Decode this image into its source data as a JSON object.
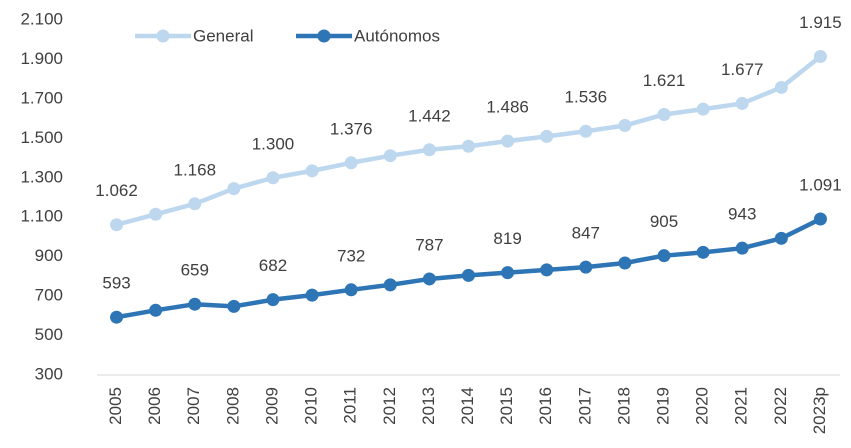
{
  "chart_data": {
    "type": "line",
    "categories": [
      "2005",
      "2006",
      "2007",
      "2008",
      "2009",
      "2010",
      "2011",
      "2012",
      "2013",
      "2014",
      "2015",
      "2016",
      "2017",
      "2018",
      "2019",
      "2020",
      "2021",
      "2022",
      "2023p"
    ],
    "series": [
      {
        "name": "General",
        "color": "#bdd7ee",
        "values": [
          1062,
          1115,
          1168,
          1245,
          1300,
          1335,
          1376,
          1412,
          1442,
          1460,
          1486,
          1510,
          1536,
          1565,
          1621,
          1648,
          1677,
          1758,
          1915
        ],
        "value_labels": [
          "1.062",
          null,
          "1.168",
          null,
          "1.300",
          null,
          "1.376",
          null,
          "1.442",
          null,
          "1.486",
          null,
          "1.536",
          null,
          "1.621",
          null,
          "1.677",
          null,
          "1.915"
        ]
      },
      {
        "name": "Autónomos",
        "color": "#2e75b6",
        "values": [
          593,
          628,
          659,
          648,
          682,
          705,
          732,
          757,
          787,
          805,
          819,
          833,
          847,
          868,
          905,
          922,
          943,
          993,
          1091
        ],
        "value_labels": [
          "593",
          null,
          "659",
          null,
          "682",
          null,
          "732",
          null,
          "787",
          null,
          "819",
          null,
          "847",
          null,
          "905",
          null,
          "943",
          null,
          "1.091"
        ]
      }
    ],
    "ylim": [
      300,
      2100
    ],
    "yticks": [
      300,
      500,
      700,
      900,
      {
        "value": 1100,
        "label": "1.100"
      },
      {
        "value": 1300,
        "label": "1.300"
      },
      {
        "value": 1500,
        "label": "1.500"
      },
      {
        "value": 1700,
        "label": "1.700"
      },
      {
        "value": 1900,
        "label": "1.900"
      },
      {
        "value": 2100,
        "label": "2.100"
      }
    ],
    "legend": "top"
  }
}
